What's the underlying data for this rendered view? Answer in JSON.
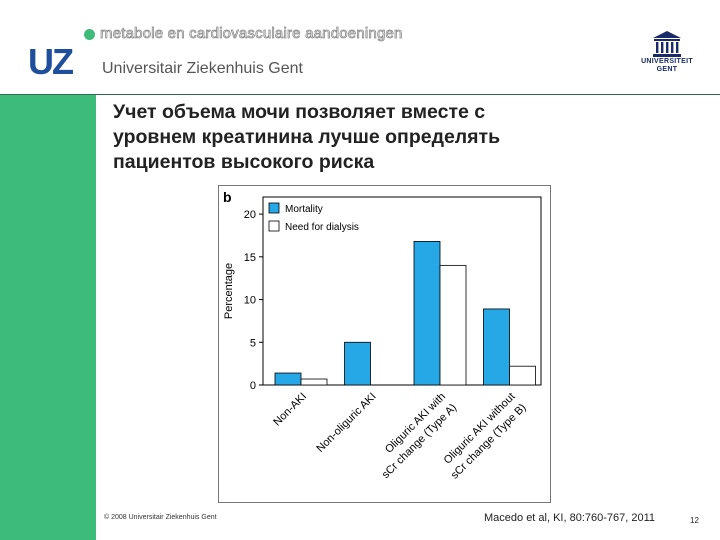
{
  "colors": {
    "accent_green": "#3dbb7a",
    "uz_blue": "#1f4e9c",
    "mortality_fill": "#27a8e6",
    "dialysis_fill": "#ffffff"
  },
  "header": {
    "department": "metabole en cardiovasculaire aandoeningen",
    "hospital_name": "Universitair Ziekenhuis Gent",
    "uz_logo_text": "UZ",
    "ugent_line1": "UNIVERSITEIT",
    "ugent_line2": "GENT"
  },
  "slide": {
    "title_line1": "Учет  объема мочи позволяет вместе с",
    "title_line2": "уровнем креатинина лучше определять",
    "title_line3": "пациентов высокого риска"
  },
  "chart_data": {
    "type": "bar",
    "panel_label": "b",
    "title": "",
    "xlabel": "",
    "ylabel": "Percentage",
    "ylim": [
      0,
      22
    ],
    "yticks": [
      0,
      5,
      10,
      15,
      20
    ],
    "categories": [
      [
        "Non-AKI"
      ],
      [
        "Non-oliguric AKI"
      ],
      [
        "Oliguric AKI with",
        "sCr change (Type A)"
      ],
      [
        "Oliguric AKI without",
        "sCr change (Type B)"
      ]
    ],
    "series": [
      {
        "name": "Mortality",
        "color": "#27a8e6",
        "values": [
          1.4,
          5.0,
          16.8,
          8.9
        ]
      },
      {
        "name": "Need for dialysis",
        "color": "#ffffff",
        "values": [
          0.7,
          0.0,
          14.0,
          2.2
        ]
      }
    ],
    "legend": "top-left",
    "grid": false
  },
  "footer": {
    "copyright": "© 2008 Universitair Ziekenhuis Gent",
    "citation": "Macedo et al, KI, 80:760-767, 2011",
    "page_number": "12"
  }
}
